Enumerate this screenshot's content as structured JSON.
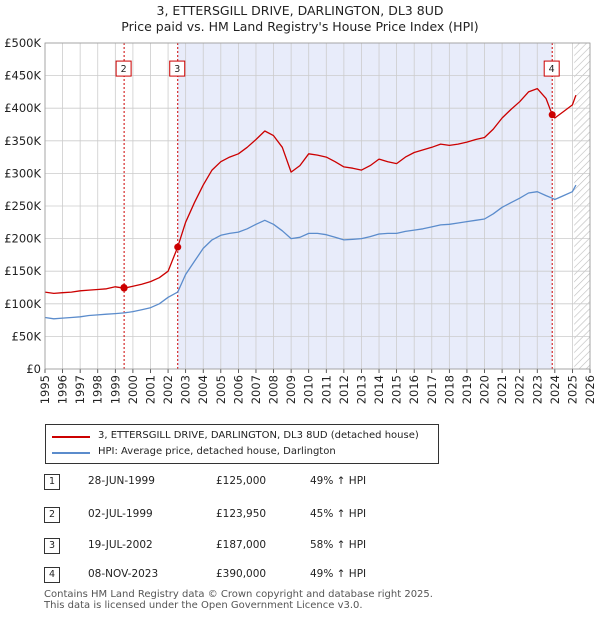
{
  "header": {
    "title": "3, ETTERSGILL DRIVE, DARLINGTON, DL3 8UD",
    "subtitle": "Price paid vs. HM Land Registry's House Price Index (HPI)"
  },
  "colors": {
    "property": "#cc0000",
    "hpi": "#5b8ccc",
    "shade": "#e8ecfa",
    "grid": "#cccccc",
    "marker_line": "#cc0000"
  },
  "legend": {
    "items": [
      {
        "label": "3, ETTERSGILL DRIVE, DARLINGTON, DL3 8UD (detached house)",
        "color": "#cc0000"
      },
      {
        "label": "HPI: Average price, detached house, Darlington",
        "color": "#5b8ccc"
      }
    ]
  },
  "transactions": [
    {
      "num": "1",
      "date": "28-JUN-1999",
      "price": "£125,000",
      "hpi": "49% ↑ HPI"
    },
    {
      "num": "2",
      "date": "02-JUL-1999",
      "price": "£123,950",
      "hpi": "45% ↑ HPI"
    },
    {
      "num": "3",
      "date": "19-JUL-2002",
      "price": "£187,000",
      "hpi": "58% ↑ HPI"
    },
    {
      "num": "4",
      "date": "08-NOV-2023",
      "price": "£390,000",
      "hpi": "49% ↑ HPI"
    }
  ],
  "footer": {
    "line1": "Contains HM Land Registry data © Crown copyright and database right 2025.",
    "line2": "This data is licensed under the Open Government Licence v3.0."
  },
  "chart_data": {
    "type": "line",
    "xlim": [
      1995,
      2026
    ],
    "ylim": [
      0,
      500000
    ],
    "xticks": [
      "1995",
      "1996",
      "1997",
      "1998",
      "1999",
      "2000",
      "2001",
      "2002",
      "2003",
      "2004",
      "2005",
      "2006",
      "2007",
      "2008",
      "2009",
      "2010",
      "2011",
      "2012",
      "2013",
      "2014",
      "2015",
      "2016",
      "2017",
      "2018",
      "2019",
      "2020",
      "2021",
      "2022",
      "2023",
      "2024",
      "2025",
      "2026"
    ],
    "yticks": [
      {
        "v": 0,
        "label": "£0"
      },
      {
        "v": 50000,
        "label": "£50K"
      },
      {
        "v": 100000,
        "label": "£100K"
      },
      {
        "v": 150000,
        "label": "£150K"
      },
      {
        "v": 200000,
        "label": "£200K"
      },
      {
        "v": 250000,
        "label": "£250K"
      },
      {
        "v": 300000,
        "label": "£300K"
      },
      {
        "v": 350000,
        "label": "£350K"
      },
      {
        "v": 400000,
        "label": "£400K"
      },
      {
        "v": 450000,
        "label": "£450K"
      },
      {
        "v": 500000,
        "label": "£500K"
      }
    ],
    "grid": true,
    "shaded_region": [
      2002.55,
      2023.85
    ],
    "future_hatch_from": 2025.1,
    "markers": [
      {
        "num": "2",
        "x": 1999.5,
        "y": 123950,
        "label_y": 460000
      },
      {
        "num": "3",
        "x": 2002.55,
        "y": 187000,
        "label_y": 460000
      },
      {
        "num": "4",
        "x": 2023.85,
        "y": 390000,
        "label_y": 460000
      }
    ],
    "series": [
      {
        "name": "3, ETTERSGILL DRIVE, DARLINGTON, DL3 8UD (detached house)",
        "color": "#cc0000",
        "x": [
          1995.0,
          1995.5,
          1996.0,
          1996.5,
          1997.0,
          1997.5,
          1998.0,
          1998.5,
          1999.0,
          1999.5,
          2000.0,
          2000.5,
          2001.0,
          2001.5,
          2002.0,
          2002.55,
          2003.0,
          2003.5,
          2004.0,
          2004.5,
          2005.0,
          2005.5,
          2006.0,
          2006.5,
          2007.0,
          2007.5,
          2008.0,
          2008.5,
          2009.0,
          2009.5,
          2010.0,
          2010.5,
          2011.0,
          2011.5,
          2012.0,
          2012.5,
          2013.0,
          2013.5,
          2014.0,
          2014.5,
          2015.0,
          2015.5,
          2016.0,
          2016.5,
          2017.0,
          2017.5,
          2018.0,
          2018.5,
          2019.0,
          2019.5,
          2020.0,
          2020.5,
          2021.0,
          2021.5,
          2022.0,
          2022.5,
          2023.0,
          2023.5,
          2023.85,
          2024.0,
          2024.5,
          2025.0,
          2025.2
        ],
        "y": [
          118000,
          116000,
          117000,
          118000,
          120000,
          121000,
          122000,
          123000,
          126000,
          124000,
          127000,
          130000,
          134000,
          140000,
          150000,
          187000,
          225000,
          255000,
          282000,
          305000,
          318000,
          325000,
          330000,
          340000,
          352000,
          365000,
          358000,
          340000,
          302000,
          312000,
          330000,
          328000,
          325000,
          318000,
          310000,
          308000,
          305000,
          312000,
          322000,
          318000,
          315000,
          325000,
          332000,
          336000,
          340000,
          345000,
          343000,
          345000,
          348000,
          352000,
          355000,
          368000,
          385000,
          398000,
          410000,
          425000,
          430000,
          415000,
          390000,
          385000,
          395000,
          405000,
          420000
        ]
      },
      {
        "name": "HPI: Average price, detached house, Darlington",
        "color": "#5b8ccc",
        "x": [
          1995.0,
          1995.5,
          1996.0,
          1996.5,
          1997.0,
          1997.5,
          1998.0,
          1998.5,
          1999.0,
          1999.5,
          2000.0,
          2000.5,
          2001.0,
          2001.5,
          2002.0,
          2002.55,
          2003.0,
          2003.5,
          2004.0,
          2004.5,
          2005.0,
          2005.5,
          2006.0,
          2006.5,
          2007.0,
          2007.5,
          2008.0,
          2008.5,
          2009.0,
          2009.5,
          2010.0,
          2010.5,
          2011.0,
          2011.5,
          2012.0,
          2012.5,
          2013.0,
          2013.5,
          2014.0,
          2014.5,
          2015.0,
          2015.5,
          2016.0,
          2016.5,
          2017.0,
          2017.5,
          2018.0,
          2018.5,
          2019.0,
          2019.5,
          2020.0,
          2020.5,
          2021.0,
          2021.5,
          2022.0,
          2022.5,
          2023.0,
          2023.5,
          2023.85,
          2024.0,
          2024.5,
          2025.0,
          2025.2
        ],
        "y": [
          79000,
          77000,
          78000,
          79000,
          80000,
          82000,
          83000,
          84000,
          85000,
          86000,
          88000,
          91000,
          94000,
          100000,
          110000,
          118000,
          145000,
          165000,
          185000,
          198000,
          205000,
          208000,
          210000,
          215000,
          222000,
          228000,
          222000,
          212000,
          200000,
          202000,
          208000,
          208000,
          206000,
          202000,
          198000,
          199000,
          200000,
          203000,
          207000,
          208000,
          208000,
          211000,
          213000,
          215000,
          218000,
          221000,
          222000,
          224000,
          226000,
          228000,
          230000,
          238000,
          248000,
          255000,
          262000,
          270000,
          272000,
          266000,
          262000,
          260000,
          266000,
          272000,
          282000
        ]
      }
    ]
  }
}
